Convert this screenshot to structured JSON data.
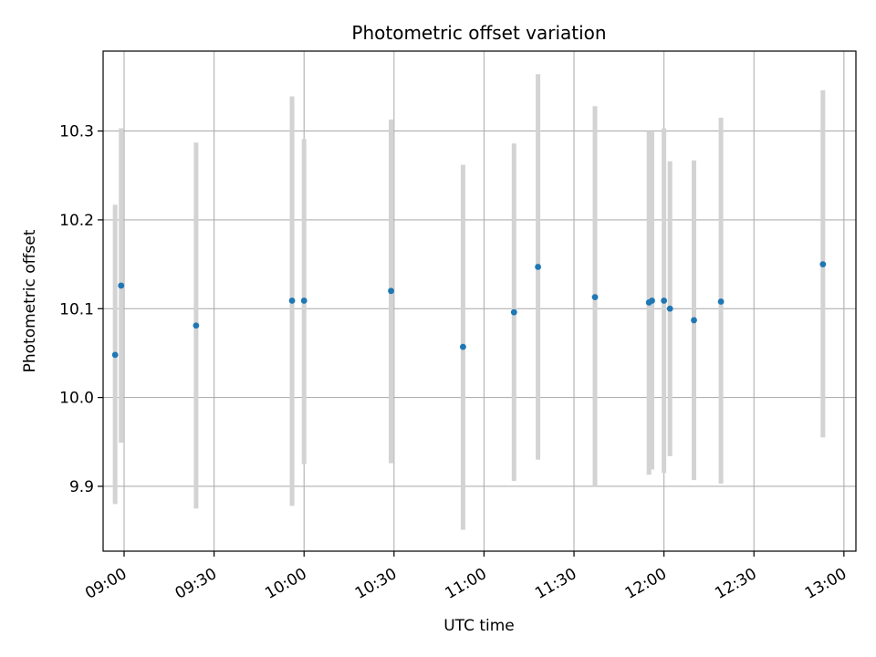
{
  "chart_data": {
    "type": "scatter",
    "title": "Photometric offset variation",
    "xlabel": "UTC time",
    "ylabel": "Photometric offset",
    "xlim": [
      "08:53",
      "13:04"
    ],
    "ylim": [
      9.827,
      10.39
    ],
    "grid": true,
    "x_ticks": [
      "09:00",
      "09:30",
      "10:00",
      "10:30",
      "11:00",
      "11:30",
      "12:00",
      "12:30",
      "13:00"
    ],
    "y_ticks": [
      "9.9",
      "10.0",
      "10.1",
      "10.2",
      "10.3"
    ],
    "colors": {
      "point": "#1f77b4",
      "errorbar": "#d3d3d3",
      "grid": "#b0b0b0",
      "axis": "#000000"
    },
    "points": [
      {
        "x": "08:57",
        "y": 10.048,
        "ylow": 9.88,
        "yhigh": 10.217
      },
      {
        "x": "08:59",
        "y": 10.126,
        "ylow": 9.949,
        "yhigh": 10.303
      },
      {
        "x": "09:24",
        "y": 10.081,
        "ylow": 9.875,
        "yhigh": 10.287
      },
      {
        "x": "09:56",
        "y": 10.109,
        "ylow": 9.878,
        "yhigh": 10.339
      },
      {
        "x": "10:00",
        "y": 10.109,
        "ylow": 9.925,
        "yhigh": 10.291
      },
      {
        "x": "10:29",
        "y": 10.12,
        "ylow": 9.926,
        "yhigh": 10.313
      },
      {
        "x": "10:53",
        "y": 10.057,
        "ylow": 9.851,
        "yhigh": 10.262
      },
      {
        "x": "11:10",
        "y": 10.096,
        "ylow": 9.906,
        "yhigh": 10.286
      },
      {
        "x": "11:18",
        "y": 10.147,
        "ylow": 9.93,
        "yhigh": 10.364
      },
      {
        "x": "11:37",
        "y": 10.113,
        "ylow": 9.9,
        "yhigh": 10.328
      },
      {
        "x": "11:55",
        "y": 10.107,
        "ylow": 9.913,
        "yhigh": 10.3
      },
      {
        "x": "11:56",
        "y": 10.109,
        "ylow": 9.919,
        "yhigh": 10.299
      },
      {
        "x": "12:00",
        "y": 10.109,
        "ylow": 9.915,
        "yhigh": 10.303
      },
      {
        "x": "12:02",
        "y": 10.1,
        "ylow": 9.934,
        "yhigh": 10.266
      },
      {
        "x": "12:10",
        "y": 10.087,
        "ylow": 9.907,
        "yhigh": 10.267
      },
      {
        "x": "12:19",
        "y": 10.108,
        "ylow": 9.903,
        "yhigh": 10.315
      },
      {
        "x": "12:53",
        "y": 10.15,
        "ylow": 9.955,
        "yhigh": 10.346
      }
    ]
  }
}
